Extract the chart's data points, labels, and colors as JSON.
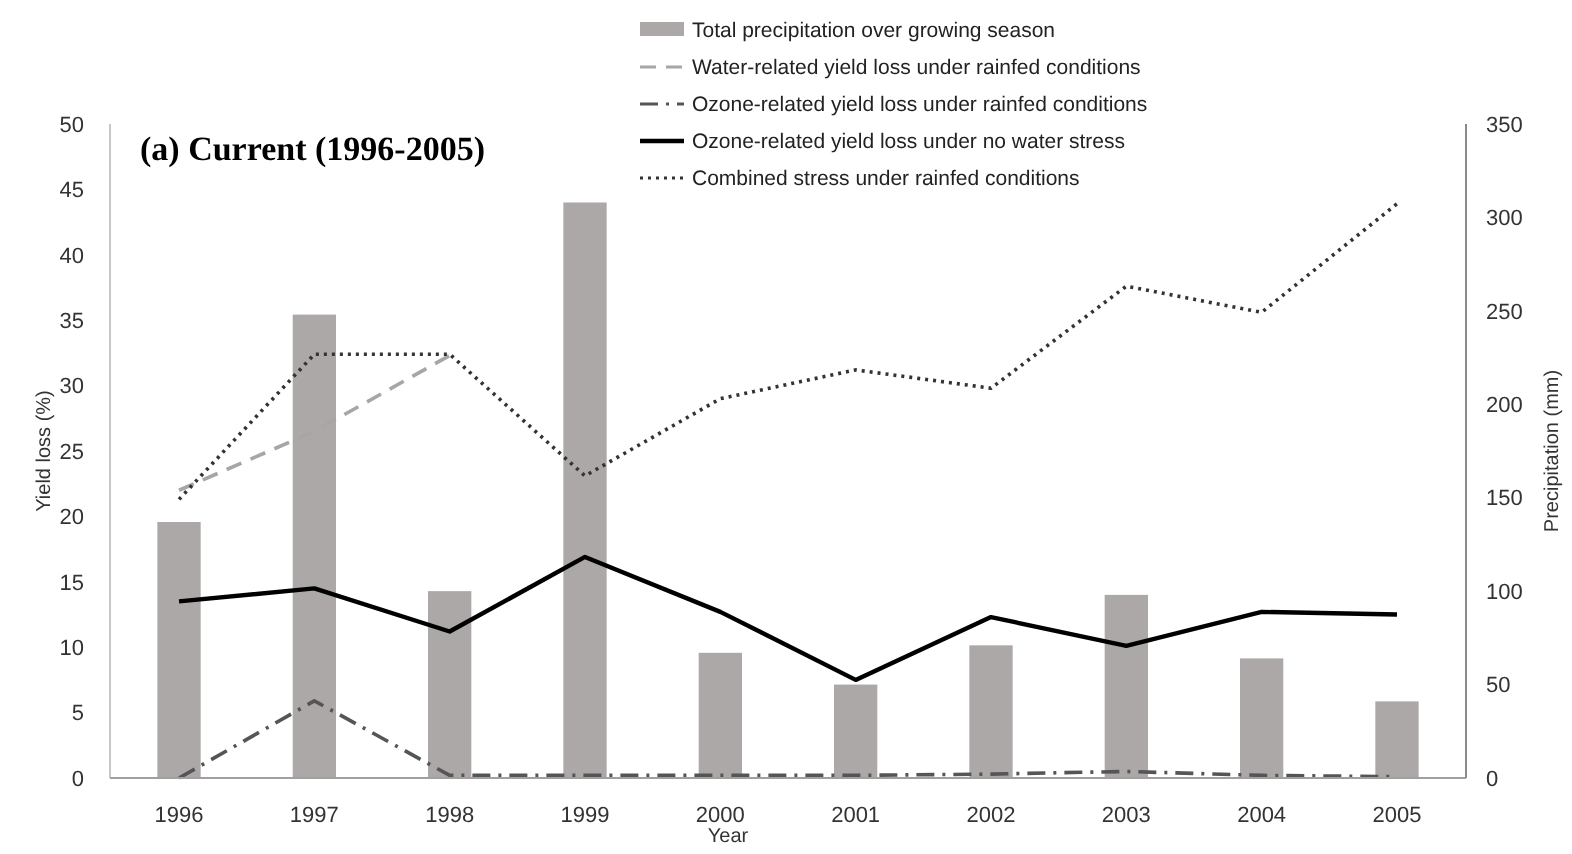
{
  "chart_data": {
    "type": "bar",
    "title": "(a) Current (1996-2005)",
    "xlabel": "Year",
    "ylabel": "Yield loss (%)",
    "y2label": "Precipitation (mm)",
    "categories": [
      "1996",
      "1997",
      "1998",
      "1999",
      "2000",
      "2001",
      "2002",
      "2003",
      "2004",
      "2005"
    ],
    "series": [
      {
        "name": "Total precipitation over growing season",
        "axis": "y2",
        "color": "#aca8a7",
        "values": [
          137,
          248,
          100,
          308,
          67,
          50,
          71,
          98,
          64,
          41
        ]
      },
      {
        "name": "Water-related yield loss under rainfed conditions",
        "type": "line",
        "line_style": "dashed",
        "color": "#a6a6a6",
        "values": [
          22,
          26.5,
          32.3,
          null,
          null,
          null,
          null,
          null,
          null,
          null
        ]
      },
      {
        "name": "Ozone-related yield loss under rainfed conditions",
        "type": "line",
        "line_style": "dashdot",
        "color": "#555555",
        "values": [
          0,
          5.9,
          0.2,
          0.2,
          0.2,
          0.2,
          0.3,
          0.5,
          0.2,
          0.1
        ]
      },
      {
        "name": "Ozone-related yield loss under no water stress",
        "type": "line",
        "line_style": "solid",
        "color": "#000000",
        "values": [
          13.5,
          14.5,
          11.2,
          16.9,
          12.7,
          7.5,
          12.3,
          10.1,
          12.7,
          12.5
        ]
      },
      {
        "name": "Combined stress under rainfed conditions",
        "type": "line",
        "line_style": "dotted",
        "color": "#333333",
        "values": [
          21.3,
          32.4,
          32.4,
          23.1,
          29.0,
          31.2,
          29.8,
          37.6,
          35.6,
          43.9
        ]
      }
    ],
    "ylim": [
      0,
      50
    ],
    "yticks": [
      0,
      5,
      10,
      15,
      20,
      25,
      30,
      35,
      40,
      45,
      50
    ],
    "y2lim": [
      0,
      350
    ],
    "y2ticks": [
      0,
      50,
      100,
      150,
      200,
      250,
      300,
      350
    ],
    "grid": false,
    "legend": "top right",
    "marker": "none"
  }
}
